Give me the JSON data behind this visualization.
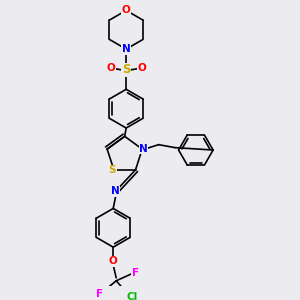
{
  "bg_color": "#ebebf0",
  "atom_colors": {
    "O": "#ff0000",
    "N": "#0000ff",
    "S_so2": "#ccaa00",
    "S_thia": "#ccaa00",
    "Cl": "#00bb00",
    "F": "#ff00ff",
    "C": "#000000"
  }
}
